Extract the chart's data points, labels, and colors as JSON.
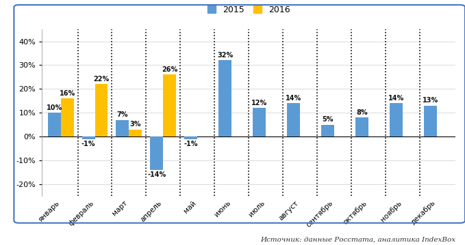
{
  "months": [
    "январь",
    "февраль",
    "март",
    "апрель",
    "май",
    "июнь",
    "июль",
    "август",
    "сентябрь",
    "октябрь",
    "ноябрь",
    "декабрь"
  ],
  "values_2015": [
    10,
    -1,
    7,
    -14,
    -1,
    32,
    12,
    14,
    5,
    8,
    14,
    13
  ],
  "values_2016": [
    16,
    22,
    3,
    26,
    null,
    null,
    null,
    null,
    null,
    null,
    null,
    null
  ],
  "color_2015": "#5B9BD5",
  "color_2016": "#FFC000",
  "ylim": [
    -25,
    45
  ],
  "yticks": [
    -20,
    -10,
    0,
    10,
    20,
    30,
    40
  ],
  "legend_2015": "2015",
  "legend_2016": "2016",
  "source_text": "Источник: данные Росстата, аналитика IndexBox",
  "bar_width": 0.38,
  "background_color": "#FFFFFF",
  "border_color": "#4472C4"
}
